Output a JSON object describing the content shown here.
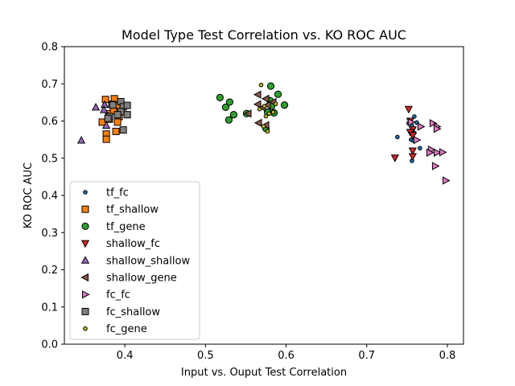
{
  "chart_data": {
    "type": "scatter",
    "title": "Model Type Test Correlation vs. KO ROC AUC",
    "xlabel": "Input vs. Ouput Test Correlation",
    "ylabel": "KO ROC AUC",
    "xlim": [
      0.325,
      0.82
    ],
    "ylim": [
      0.0,
      0.8
    ],
    "xticks": [
      0.4,
      0.5,
      0.6,
      0.7,
      0.8
    ],
    "xtick_labels": [
      "0.4",
      "0.5",
      "0.6",
      "0.7",
      "0.8"
    ],
    "yticks": [
      0.0,
      0.1,
      0.2,
      0.3,
      0.4,
      0.5,
      0.6,
      0.7,
      0.8
    ],
    "ytick_labels": [
      "0.0",
      "0.1",
      "0.2",
      "0.3",
      "0.4",
      "0.5",
      "0.6",
      "0.7",
      "0.8"
    ],
    "grid": false,
    "legend_position": "lower-left",
    "series": [
      {
        "name": "tf_fc",
        "marker": "circle-small",
        "color": "#1f77b4",
        "points": [
          [
            0.738,
            0.557
          ],
          [
            0.752,
            0.594
          ],
          [
            0.756,
            0.588
          ],
          [
            0.759,
            0.612
          ],
          [
            0.762,
            0.596
          ],
          [
            0.755,
            0.55
          ],
          [
            0.759,
            0.568
          ],
          [
            0.758,
            0.547
          ],
          [
            0.766,
            0.527
          ],
          [
            0.756,
            0.493
          ]
        ]
      },
      {
        "name": "tf_shallow",
        "marker": "square",
        "color": "#ff7f0e",
        "points": [
          [
            0.376,
            0.658
          ],
          [
            0.387,
            0.66
          ],
          [
            0.384,
            0.645
          ],
          [
            0.39,
            0.64
          ],
          [
            0.38,
            0.62
          ],
          [
            0.386,
            0.627
          ],
          [
            0.393,
            0.612
          ],
          [
            0.381,
            0.605
          ],
          [
            0.372,
            0.597
          ],
          [
            0.391,
            0.597
          ],
          [
            0.377,
            0.565
          ],
          [
            0.389,
            0.572
          ],
          [
            0.377,
            0.551
          ]
        ]
      },
      {
        "name": "tf_gene",
        "marker": "circle",
        "color": "#2ca02c",
        "points": [
          [
            0.518,
            0.663
          ],
          [
            0.53,
            0.651
          ],
          [
            0.525,
            0.637
          ],
          [
            0.535,
            0.617
          ],
          [
            0.529,
            0.603
          ],
          [
            0.551,
            0.62
          ],
          [
            0.581,
            0.694
          ],
          [
            0.59,
            0.672
          ],
          [
            0.58,
            0.655
          ],
          [
            0.598,
            0.643
          ],
          [
            0.582,
            0.64
          ],
          [
            0.577,
            0.624
          ],
          [
            0.585,
            0.622
          ],
          [
            0.575,
            0.58
          ]
        ]
      },
      {
        "name": "shallow_fc",
        "marker": "triangle-down",
        "color": "#d62728",
        "points": [
          [
            0.752,
            0.632
          ],
          [
            0.754,
            0.6
          ],
          [
            0.757,
            0.577
          ],
          [
            0.754,
            0.57
          ],
          [
            0.757,
            0.562
          ],
          [
            0.757,
            0.52
          ],
          [
            0.757,
            0.505
          ],
          [
            0.735,
            0.501
          ]
        ]
      },
      {
        "name": "shallow_shallow",
        "marker": "triangle-up",
        "color": "#9467bd",
        "points": [
          [
            0.364,
            0.637
          ],
          [
            0.375,
            0.644
          ],
          [
            0.374,
            0.63
          ],
          [
            0.379,
            0.613
          ],
          [
            0.377,
            0.588
          ],
          [
            0.346,
            0.548
          ]
        ]
      },
      {
        "name": "shallow_gene",
        "marker": "triangle-left",
        "color": "#8c564b",
        "points": [
          [
            0.565,
            0.671
          ],
          [
            0.575,
            0.66
          ],
          [
            0.565,
            0.645
          ],
          [
            0.571,
            0.636
          ],
          [
            0.577,
            0.643
          ],
          [
            0.584,
            0.651
          ],
          [
            0.553,
            0.62
          ],
          [
            0.566,
            0.595
          ],
          [
            0.575,
            0.589
          ]
        ]
      },
      {
        "name": "fc_fc",
        "marker": "triangle-right",
        "color": "#e377c2",
        "points": [
          [
            0.755,
            0.597
          ],
          [
            0.782,
            0.594
          ],
          [
            0.787,
            0.585
          ],
          [
            0.787,
            0.579
          ],
          [
            0.767,
            0.585
          ],
          [
            0.762,
            0.549
          ],
          [
            0.78,
            0.523
          ],
          [
            0.778,
            0.515
          ],
          [
            0.787,
            0.515
          ],
          [
            0.794,
            0.516
          ],
          [
            0.785,
            0.479
          ],
          [
            0.798,
            0.44
          ]
        ]
      },
      {
        "name": "fc_shallow",
        "marker": "square",
        "color": "#7f7f7f",
        "points": [
          [
            0.385,
            0.643
          ],
          [
            0.395,
            0.652
          ],
          [
            0.398,
            0.638
          ],
          [
            0.403,
            0.642
          ],
          [
            0.395,
            0.625
          ],
          [
            0.403,
            0.617
          ],
          [
            0.391,
            0.617
          ],
          [
            0.381,
            0.612
          ],
          [
            0.379,
            0.607
          ],
          [
            0.398,
            0.576
          ]
        ]
      },
      {
        "name": "fc_gene",
        "marker": "circle-small",
        "color": "#bcbd22",
        "points": [
          [
            0.569,
            0.697
          ],
          [
            0.573,
            0.64
          ],
          [
            0.567,
            0.632
          ],
          [
            0.579,
            0.62
          ],
          [
            0.575,
            0.613
          ],
          [
            0.577,
            0.572
          ],
          [
            0.572,
            0.586
          ],
          [
            0.587,
            0.646
          ],
          [
            0.584,
            0.624
          ]
        ]
      }
    ]
  }
}
